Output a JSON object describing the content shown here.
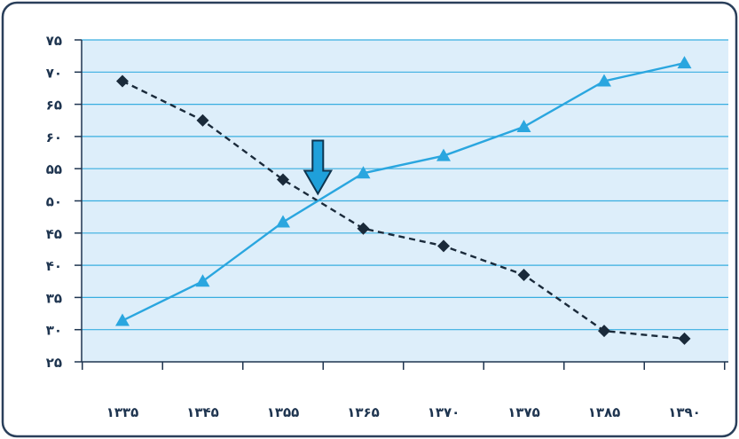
{
  "chart_data": {
    "type": "line",
    "categories": [
      "۱۳۳۵",
      "۱۳۴۵",
      "۱۳۵۵",
      "۱۳۶۵",
      "۱۳۷۰",
      "۱۳۷۵",
      "۱۳۸۵",
      "۱۳۹۰"
    ],
    "y_ticks": [
      "۲۵",
      "۳۰",
      "۳۵",
      "۴۰",
      "۴۵",
      "۵۰",
      "۵۵",
      "۶۰",
      "۶۵",
      "۷۰",
      "۷۵"
    ],
    "ylim": [
      25,
      75
    ],
    "grid": true,
    "series": [
      {
        "marker": "diamond",
        "line_style": "dashed",
        "color": "#1a2a3a",
        "values": [
          68.6,
          62.5,
          53.3,
          45.7,
          43.0,
          38.5,
          29.8,
          28.6
        ]
      },
      {
        "marker": "triangle",
        "line_style": "solid",
        "color": "#2aa6df",
        "values": [
          31.4,
          37.5,
          46.7,
          54.3,
          57.0,
          61.5,
          68.6,
          71.4
        ]
      }
    ],
    "annotation": {
      "type": "arrow",
      "color": "#1fa0da",
      "points_to": "intersection"
    },
    "colors": {
      "plot_bg": "#ddeefa",
      "grid": "#38aee0",
      "frame": "#2a3f5a"
    }
  }
}
